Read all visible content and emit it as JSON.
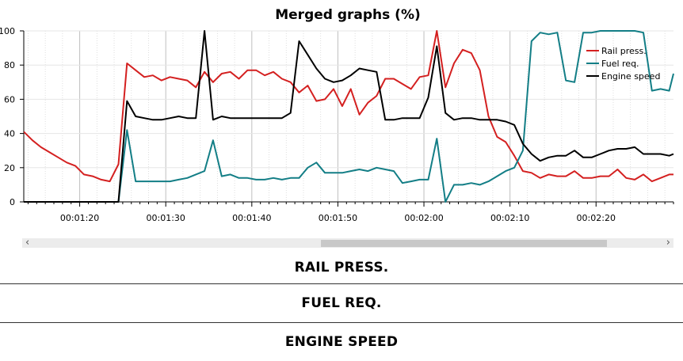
{
  "chart_data": {
    "type": "line",
    "title": "Merged graphs (%)",
    "x_unit": "seconds",
    "xlim": [
      73.5,
      149
    ],
    "ylim": [
      0,
      100
    ],
    "y_ticks": [
      0,
      20,
      40,
      60,
      80,
      100
    ],
    "x_ticks": [
      80,
      90,
      100,
      110,
      120,
      130,
      140
    ],
    "x_tick_labels": [
      "00:01:20",
      "00:01:30",
      "00:01:40",
      "00:01:50",
      "00:02:00",
      "00:02:10",
      "00:02:20"
    ],
    "grid": true,
    "legend_position": "top-right",
    "series": [
      {
        "name": "Rail press.",
        "color": "#d42020",
        "x": [
          73.5,
          74.5,
          75.5,
          76.5,
          77.5,
          78.5,
          79.5,
          80.5,
          81.5,
          82.5,
          83.5,
          84.5,
          85.5,
          86.5,
          87.5,
          88.5,
          89.5,
          90.5,
          91.5,
          92.5,
          93.5,
          94.5,
          95.5,
          96.5,
          97.5,
          98.5,
          99.5,
          100.5,
          101.5,
          102.5,
          103.5,
          104.5,
          105.5,
          106.5,
          107.5,
          108.5,
          109.5,
          110.5,
          111.5,
          112.5,
          113.5,
          114.5,
          115.5,
          116.5,
          117.5,
          118.5,
          119.5,
          120.5,
          121.5,
          122.5,
          123.5,
          124.5,
          125.5,
          126.5,
          127.5,
          128.5,
          129.5,
          130.5,
          131.5,
          132.5,
          133.5,
          134.5,
          135.5,
          136.5,
          137.5,
          138.5,
          139.5,
          140.5,
          141.5,
          142.5,
          143.5,
          144.5,
          145.5,
          146.5,
          147.5,
          148.5,
          149
        ],
        "values": [
          41,
          36,
          32,
          29,
          26,
          23,
          21,
          16,
          15,
          13,
          12,
          22,
          81,
          77,
          73,
          74,
          71,
          73,
          72,
          71,
          67,
          76,
          70,
          75,
          76,
          72,
          77,
          77,
          74,
          76,
          72,
          70,
          64,
          68,
          59,
          60,
          66,
          56,
          66,
          51,
          58,
          62,
          72,
          72,
          69,
          66,
          73,
          74,
          100,
          67,
          81,
          89,
          87,
          77,
          50,
          38,
          35,
          27,
          18,
          17,
          14,
          16,
          15,
          15,
          18,
          14,
          14,
          15,
          15,
          19,
          14,
          13,
          16,
          12,
          14,
          16,
          16
        ]
      },
      {
        "name": "Fuel req.",
        "color": "#137e86",
        "x": [
          73.5,
          74.5,
          75.5,
          76.5,
          77.5,
          78.5,
          79.5,
          80.5,
          81.5,
          82.5,
          83.5,
          84.5,
          85.5,
          86.5,
          87.5,
          88.5,
          89.5,
          90.5,
          91.5,
          92.5,
          93.5,
          94.5,
          95.5,
          96.5,
          97.5,
          98.5,
          99.5,
          100.5,
          101.5,
          102.5,
          103.5,
          104.5,
          105.5,
          106.5,
          107.5,
          108.5,
          109.5,
          110.5,
          111.5,
          112.5,
          113.5,
          114.5,
          115.5,
          116.5,
          117.5,
          118.5,
          119.5,
          120.5,
          121.5,
          122.5,
          123.5,
          124.5,
          125.5,
          126.5,
          127.5,
          128.5,
          129.5,
          130.5,
          131.5,
          132.5,
          133.5,
          134.5,
          135.5,
          136.5,
          137.5,
          138.5,
          139.5,
          140.5,
          141.5,
          142.5,
          143.5,
          144.5,
          145.5,
          146.5,
          147.5,
          148.5,
          149
        ],
        "values": [
          0,
          0,
          0,
          0,
          0,
          0,
          0,
          0,
          0,
          0,
          0,
          0,
          42,
          12,
          12,
          12,
          12,
          12,
          13,
          14,
          16,
          18,
          36,
          15,
          16,
          14,
          14,
          13,
          13,
          14,
          13,
          14,
          14,
          20,
          23,
          17,
          17,
          17,
          18,
          19,
          18,
          20,
          19,
          18,
          11,
          12,
          13,
          13,
          37,
          0,
          10,
          10,
          11,
          10,
          12,
          15,
          18,
          20,
          30,
          94,
          99,
          98,
          99,
          71,
          70,
          99,
          99,
          100,
          100,
          100,
          100,
          100,
          99,
          65,
          66,
          65,
          75
        ]
      },
      {
        "name": "Engine speed",
        "color": "#000000",
        "x": [
          73.5,
          74.5,
          75.5,
          76.5,
          77.5,
          78.5,
          79.5,
          80.5,
          81.5,
          82.5,
          83.5,
          84.5,
          85.5,
          86.5,
          87.5,
          88.5,
          89.5,
          90.5,
          91.5,
          92.5,
          93.5,
          94.5,
          95.5,
          96.5,
          97.5,
          98.5,
          99.5,
          100.5,
          101.5,
          102.5,
          103.5,
          104.5,
          105.5,
          106.5,
          107.5,
          108.5,
          109.5,
          110.5,
          111.5,
          112.5,
          113.5,
          114.5,
          115.5,
          116.5,
          117.5,
          118.5,
          119.5,
          120.5,
          121.5,
          122.5,
          123.5,
          124.5,
          125.5,
          126.5,
          127.5,
          128.5,
          129.5,
          130.5,
          131.5,
          132.5,
          133.5,
          134.5,
          135.5,
          136.5,
          137.5,
          138.5,
          139.5,
          140.5,
          141.5,
          142.5,
          143.5,
          144.5,
          145.5,
          146.5,
          147.5,
          148.5,
          149
        ],
        "values": [
          0,
          0,
          0,
          0,
          0,
          0,
          0,
          0,
          0,
          0,
          0,
          0,
          59,
          50,
          49,
          48,
          48,
          49,
          50,
          49,
          49,
          100,
          48,
          50,
          49,
          49,
          49,
          49,
          49,
          49,
          49,
          52,
          94,
          86,
          78,
          72,
          70,
          71,
          74,
          78,
          77,
          76,
          48,
          48,
          49,
          49,
          49,
          61,
          91,
          52,
          48,
          49,
          49,
          48,
          48,
          48,
          47,
          45,
          34,
          28,
          24,
          26,
          27,
          27,
          30,
          26,
          26,
          28,
          30,
          31,
          31,
          32,
          28,
          28,
          28,
          27,
          28
        ]
      }
    ]
  },
  "sections": {
    "rail_press": "RAIL PRESS.",
    "fuel_req": "FUEL REQ.",
    "engine_speed": "ENGINE SPEED"
  },
  "scrollbar": {
    "left_arrow": "‹",
    "right_arrow": "›"
  }
}
